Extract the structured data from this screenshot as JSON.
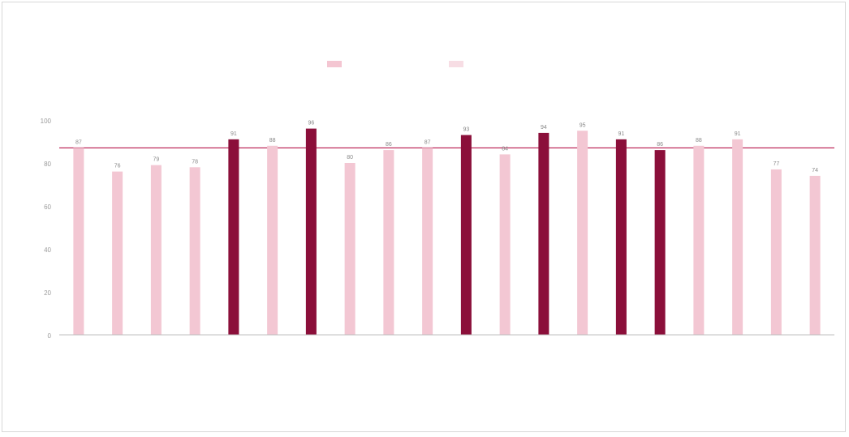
{
  "chart_data": {
    "type": "bar",
    "title": "",
    "xlabel": "",
    "ylabel": "",
    "legend": {
      "placement": "top-center",
      "entries": [
        {
          "label": "",
          "color": "#f4c6d2"
        },
        {
          "label": "",
          "color": "#f7dde4"
        }
      ]
    },
    "ylim": [
      0,
      100
    ],
    "yticks": [
      0,
      20,
      40,
      60,
      80,
      100
    ],
    "reference_line": {
      "value": 87,
      "color": "#b8154b"
    },
    "categories": [
      "",
      "",
      "",
      "",
      "",
      "",
      "",
      "",
      "",
      "",
      "",
      "",
      "",
      "",
      "",
      "",
      "",
      "",
      "",
      ""
    ],
    "values": [
      87,
      76,
      79,
      78,
      91,
      88,
      96,
      80,
      86,
      87,
      93,
      84,
      94,
      95,
      91,
      86,
      88,
      91,
      77,
      74
    ],
    "highlight": [
      false,
      false,
      false,
      false,
      true,
      false,
      true,
      false,
      false,
      false,
      true,
      false,
      true,
      false,
      true,
      true,
      false,
      false,
      false,
      false
    ],
    "colors": {
      "normal": "#f3c7d3",
      "highlight": "#8b0f3a",
      "axis": "#bfbfbf",
      "reference": "#b8154b",
      "text": "#666666"
    },
    "grid": false
  }
}
